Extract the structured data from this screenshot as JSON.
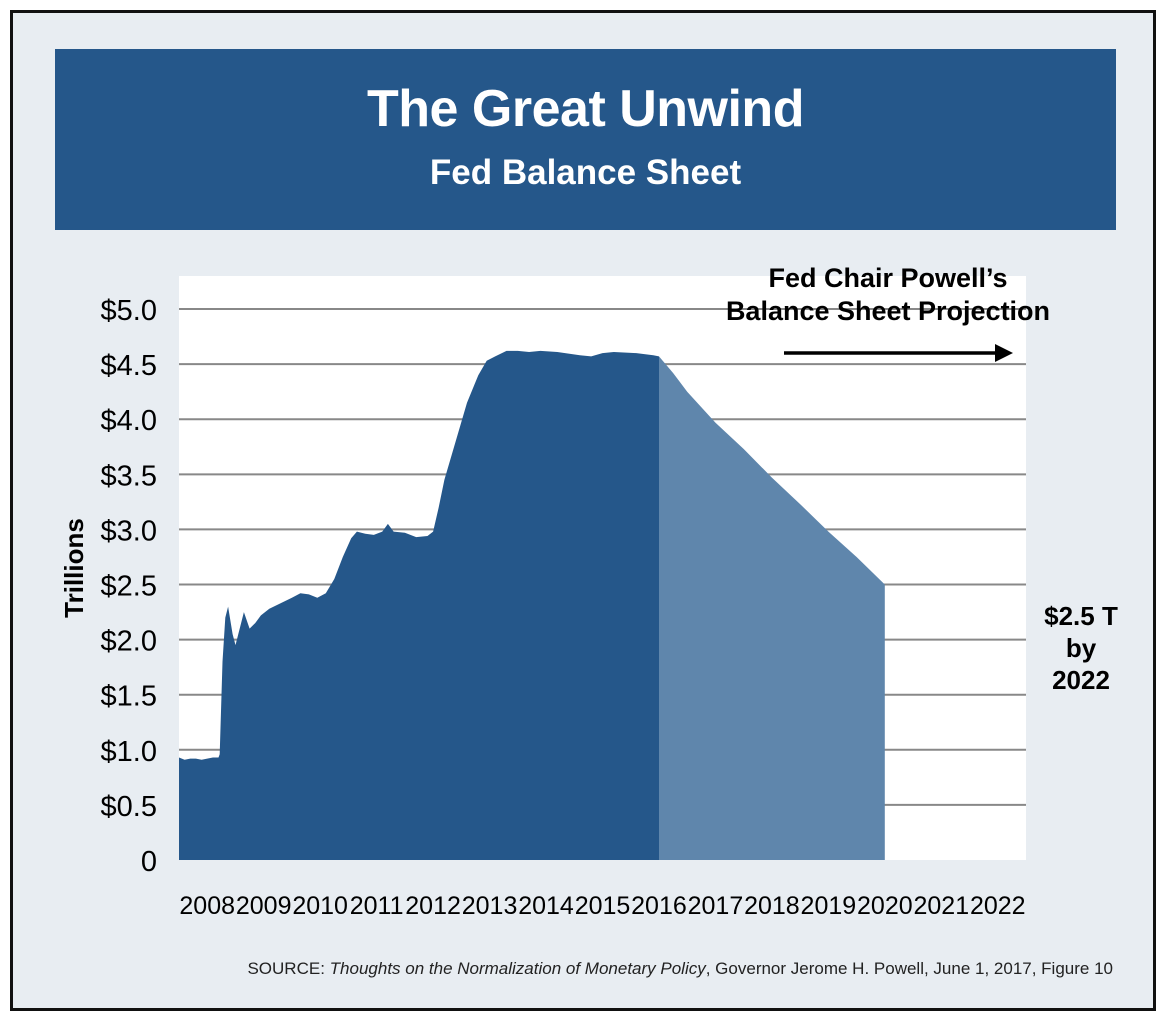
{
  "header": {
    "title": "The Great Unwind",
    "subtitle": "Fed Balance Sheet"
  },
  "annotations": {
    "projection_line1": "Fed Chair Powell’s",
    "projection_line2": "Balance Sheet Projection",
    "end_value_line1": "$2.5 T",
    "end_value_line2": "by",
    "end_value_line3": "2022"
  },
  "source": {
    "prefix": "SOURCE: ",
    "italic": "Thoughts on the Normalization of Monetary Policy",
    "suffix": ", Governor Jerome H. Powell, June 1, 2017, Figure 10"
  },
  "colors": {
    "banner": "#25578a",
    "actual_fill": "#25578a",
    "projection_fill": "#5f86ac",
    "plot_background": "#ffffff",
    "gridline": "#888888",
    "frame_background": "#e8edf2"
  },
  "chart_data": {
    "type": "area",
    "ylabel": "Trillions",
    "xlabel": "",
    "ylim": [
      0,
      5.0
    ],
    "xlim": [
      2007.5,
      2022.5
    ],
    "y_ticks": [
      {
        "value": 5.0,
        "label": "$5.0"
      },
      {
        "value": 4.5,
        "label": "$4.5"
      },
      {
        "value": 4.0,
        "label": "$4.0"
      },
      {
        "value": 3.5,
        "label": "$3.5"
      },
      {
        "value": 3.0,
        "label": "$3.0"
      },
      {
        "value": 2.5,
        "label": "$2.5"
      },
      {
        "value": 2.0,
        "label": "$2.0"
      },
      {
        "value": 1.5,
        "label": "$1.5"
      },
      {
        "value": 1.0,
        "label": "$1.0"
      },
      {
        "value": 0.5,
        "label": "$0.5"
      },
      {
        "value": 0,
        "label": "0"
      }
    ],
    "x_ticks": [
      "2008",
      "2009",
      "2010",
      "2011",
      "2012",
      "2013",
      "2014",
      "2015",
      "2016",
      "2017",
      "2018",
      "2019",
      "2020",
      "2021",
      "2022"
    ],
    "grid": true,
    "series": [
      {
        "values": [
          [
            2007.5,
            0.93
          ],
          [
            2007.6,
            0.91
          ],
          [
            2007.7,
            0.92
          ],
          [
            2007.8,
            0.92
          ],
          [
            2007.9,
            0.91
          ],
          [
            2008.0,
            0.92
          ],
          [
            2008.1,
            0.93
          ],
          [
            2008.2,
            0.93
          ],
          [
            2008.22,
            0.96
          ],
          [
            2008.27,
            1.8
          ],
          [
            2008.32,
            2.2
          ],
          [
            2008.37,
            2.3
          ],
          [
            2008.45,
            2.05
          ],
          [
            2008.5,
            1.95
          ],
          [
            2008.6,
            2.15
          ],
          [
            2008.65,
            2.25
          ],
          [
            2008.75,
            2.1
          ],
          [
            2008.85,
            2.15
          ],
          [
            2008.95,
            2.22
          ],
          [
            2009.1,
            2.28
          ],
          [
            2009.3,
            2.33
          ],
          [
            2009.5,
            2.38
          ],
          [
            2009.65,
            2.42
          ],
          [
            2009.8,
            2.41
          ],
          [
            2009.95,
            2.38
          ],
          [
            2010.1,
            2.42
          ],
          [
            2010.25,
            2.55
          ],
          [
            2010.4,
            2.75
          ],
          [
            2010.55,
            2.92
          ],
          [
            2010.65,
            2.98
          ],
          [
            2010.8,
            2.96
          ],
          [
            2010.95,
            2.95
          ],
          [
            2011.1,
            2.98
          ],
          [
            2011.2,
            3.05
          ],
          [
            2011.3,
            2.98
          ],
          [
            2011.5,
            2.97
          ],
          [
            2011.7,
            2.93
          ],
          [
            2011.9,
            2.94
          ],
          [
            2012.0,
            2.98
          ],
          [
            2012.1,
            3.2
          ],
          [
            2012.2,
            3.45
          ],
          [
            2012.4,
            3.8
          ],
          [
            2012.6,
            4.15
          ],
          [
            2012.8,
            4.4
          ],
          [
            2012.95,
            4.53
          ],
          [
            2013.1,
            4.57
          ],
          [
            2013.3,
            4.62
          ],
          [
            2013.5,
            4.62
          ],
          [
            2013.7,
            4.61
          ],
          [
            2013.9,
            4.62
          ],
          [
            2014.2,
            4.61
          ],
          [
            2014.6,
            4.58
          ],
          [
            2014.8,
            4.57
          ],
          [
            2015.0,
            4.6
          ],
          [
            2015.2,
            4.61
          ],
          [
            2015.6,
            4.6
          ],
          [
            2015.9,
            4.58
          ],
          [
            2016.0,
            4.57
          ]
        ]
      },
      {
        "values": [
          [
            2016.0,
            4.57
          ],
          [
            2016.25,
            4.42
          ],
          [
            2016.5,
            4.25
          ],
          [
            2017.0,
            3.97
          ],
          [
            2017.5,
            3.73
          ],
          [
            2018.0,
            3.47
          ],
          [
            2018.5,
            3.23
          ],
          [
            2019.0,
            2.98
          ],
          [
            2019.5,
            2.75
          ],
          [
            2020.0,
            2.5
          ]
        ]
      }
    ]
  }
}
